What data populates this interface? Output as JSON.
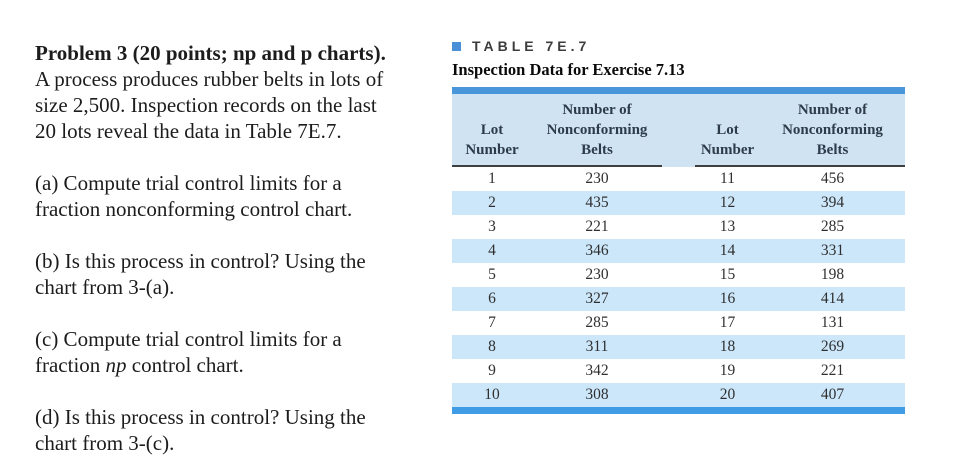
{
  "problem": {
    "title": "Problem 3 (20 points; np and p charts).",
    "intro": "A process produces rubber belts in lots of\nsize 2,500. Inspection records on the last\n20 lots reveal the data in Table 7E.7.",
    "part_a": "(a) Compute trial control limits for a\nfraction nonconforming control chart.",
    "part_b": "(b) Is this process in control? Using the\nchart from 3-(a).",
    "part_c_pre": "(c) Compute trial control limits for a\nfraction ",
    "part_c_italic": "np",
    "part_c_post": " control chart.",
    "part_d": "(d) Is this process in control? Using the\nchart from 3-(c)."
  },
  "table": {
    "label": "TABLE 7E.7",
    "caption": "Inspection Data for Exercise 7.13",
    "headers": [
      "Lot\nNumber",
      "Number of\nNonconforming\nBelts",
      "Lot\nNumber",
      "Number of\nNonconforming\nBelts"
    ],
    "rows": [
      [
        "1",
        "230",
        "11",
        "456"
      ],
      [
        "2",
        "435",
        "12",
        "394"
      ],
      [
        "3",
        "221",
        "13",
        "285"
      ],
      [
        "4",
        "346",
        "14",
        "331"
      ],
      [
        "5",
        "230",
        "15",
        "198"
      ],
      [
        "6",
        "327",
        "16",
        "414"
      ],
      [
        "7",
        "285",
        "17",
        "131"
      ],
      [
        "8",
        "311",
        "18",
        "269"
      ],
      [
        "9",
        "342",
        "19",
        "221"
      ],
      [
        "10",
        "308",
        "20",
        "407"
      ]
    ]
  },
  "theme": {
    "bar_top": "#4a96da",
    "bar_bottom": "#3f9ce5",
    "header_bg": "#cfe3f3",
    "stripe_bg": "#cde7fa",
    "bullet_blue": "#4a90d9",
    "underline": "#3f3f3f"
  }
}
